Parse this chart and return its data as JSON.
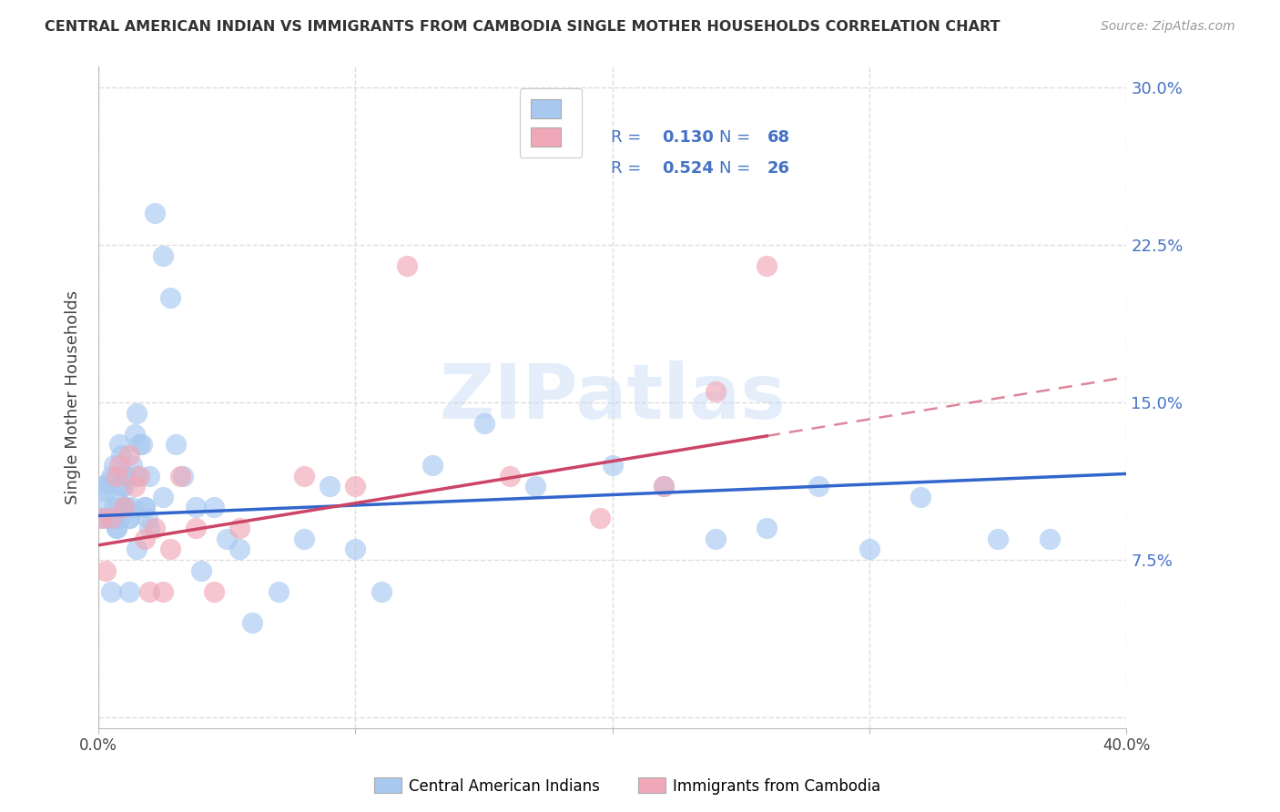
{
  "title": "CENTRAL AMERICAN INDIAN VS IMMIGRANTS FROM CAMBODIA SINGLE MOTHER HOUSEHOLDS CORRELATION CHART",
  "source": "Source: ZipAtlas.com",
  "ylabel": "Single Mother Households",
  "xlim": [
    0.0,
    0.4
  ],
  "ylim": [
    -0.005,
    0.31
  ],
  "yticks": [
    0.0,
    0.075,
    0.15,
    0.225,
    0.3
  ],
  "yticklabels": [
    "",
    "7.5%",
    "15.0%",
    "22.5%",
    "30.0%"
  ],
  "xtick_positions": [
    0.0,
    0.1,
    0.2,
    0.3,
    0.4
  ],
  "xticklabels": [
    "0.0%",
    "",
    "",
    "",
    "40.0%"
  ],
  "right_ytick_color": "#4472C4",
  "legend_r1": "0.130",
  "legend_n1": "68",
  "legend_r2": "0.524",
  "legend_n2": "26",
  "blue_color": "#A8C8F0",
  "pink_color": "#F0A8B8",
  "blue_line_color": "#3366CC",
  "pink_line_color": "#CC4466",
  "watermark": "ZIPatlas",
  "blue_scatter_x": [
    0.001,
    0.002,
    0.003,
    0.004,
    0.005,
    0.005,
    0.006,
    0.006,
    0.007,
    0.007,
    0.008,
    0.008,
    0.009,
    0.009,
    0.01,
    0.01,
    0.011,
    0.011,
    0.012,
    0.012,
    0.013,
    0.013,
    0.014,
    0.015,
    0.015,
    0.016,
    0.017,
    0.018,
    0.019,
    0.02,
    0.022,
    0.025,
    0.028,
    0.03,
    0.033,
    0.038,
    0.04,
    0.045,
    0.05,
    0.055,
    0.06,
    0.07,
    0.08,
    0.09,
    0.1,
    0.11,
    0.13,
    0.15,
    0.17,
    0.2,
    0.22,
    0.24,
    0.26,
    0.28,
    0.3,
    0.32,
    0.35,
    0.37,
    0.001,
    0.003,
    0.005,
    0.007,
    0.01,
    0.012,
    0.015,
    0.018,
    0.02,
    0.025
  ],
  "blue_scatter_y": [
    0.095,
    0.1,
    0.108,
    0.112,
    0.095,
    0.115,
    0.1,
    0.12,
    0.09,
    0.105,
    0.095,
    0.13,
    0.11,
    0.125,
    0.1,
    0.11,
    0.1,
    0.115,
    0.095,
    0.06,
    0.12,
    0.1,
    0.135,
    0.115,
    0.145,
    0.13,
    0.13,
    0.1,
    0.095,
    0.115,
    0.24,
    0.22,
    0.2,
    0.13,
    0.115,
    0.1,
    0.07,
    0.1,
    0.085,
    0.08,
    0.045,
    0.06,
    0.085,
    0.11,
    0.08,
    0.06,
    0.12,
    0.14,
    0.11,
    0.12,
    0.11,
    0.085,
    0.09,
    0.11,
    0.08,
    0.105,
    0.085,
    0.085,
    0.11,
    0.095,
    0.06,
    0.09,
    0.115,
    0.095,
    0.08,
    0.1,
    0.09,
    0.105
  ],
  "pink_scatter_x": [
    0.001,
    0.003,
    0.005,
    0.007,
    0.008,
    0.01,
    0.012,
    0.014,
    0.016,
    0.018,
    0.02,
    0.022,
    0.025,
    0.028,
    0.032,
    0.038,
    0.045,
    0.055,
    0.08,
    0.1,
    0.12,
    0.16,
    0.195,
    0.22,
    0.24,
    0.26
  ],
  "pink_scatter_y": [
    0.095,
    0.07,
    0.095,
    0.115,
    0.12,
    0.1,
    0.125,
    0.11,
    0.115,
    0.085,
    0.06,
    0.09,
    0.06,
    0.08,
    0.115,
    0.09,
    0.06,
    0.09,
    0.115,
    0.11,
    0.215,
    0.115,
    0.095,
    0.11,
    0.155,
    0.215
  ],
  "grid_color": "#DDDDDD",
  "background_color": "#FFFFFF",
  "blue_line_slope": 0.05,
  "blue_line_intercept": 0.096,
  "pink_line_slope": 0.2,
  "pink_line_intercept": 0.082
}
